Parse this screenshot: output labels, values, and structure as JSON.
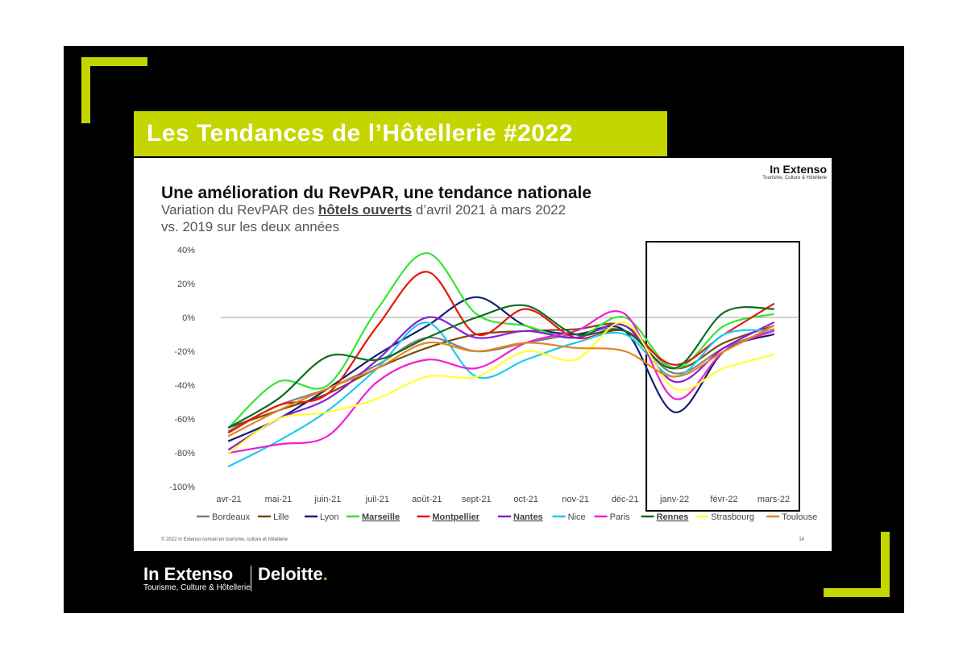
{
  "banner": {
    "title": "Les Tendances de l’Hôtellerie #2022"
  },
  "slide": {
    "logo": "In Extenso",
    "logo_sub": "Tourisme, Culture & Hôtellerie",
    "title": "Une amélioration du RevPAR, une tendance nationale",
    "subtitle_pre": "Variation du RevPAR des ",
    "subtitle_bold": "hôtels ouverts",
    "subtitle_post": " d’avril 2021 à mars 2022",
    "subtitle_line2": "vs. 2019 sur les deux années",
    "footer": "© 2022 In Extenso conseil en tourisme, culture et hôtellerie",
    "page": "14"
  },
  "brand": {
    "in_extenso": "In Extenso",
    "in_extenso_sub": "Tourisme, Culture & Hôtellerie",
    "deloitte": "Deloitte",
    "deloitte_dot": "."
  },
  "colors": {
    "accent": "#c5d500",
    "frame": "#000000",
    "deloitte_dot": "#86bc25"
  },
  "chart_data": {
    "type": "line",
    "categories": [
      "avr-21",
      "mai-21",
      "juin-21",
      "juil-21",
      "août-21",
      "sept-21",
      "oct-21",
      "nov-21",
      "déc-21",
      "janv-22",
      "févr-22",
      "mars-22"
    ],
    "ylim": [
      -100,
      40
    ],
    "yticks": [
      40,
      20,
      0,
      -20,
      -40,
      -60,
      -80,
      -100
    ],
    "ytick_labels": [
      "40%",
      "20%",
      "0%",
      "-20%",
      "-40%",
      "-60%",
      "-80%",
      "-100%"
    ],
    "highlight_range": [
      "janv-22",
      "mars-22"
    ],
    "legend_position": "bottom",
    "series": [
      {
        "name": "Bordeaux",
        "color": "#808080",
        "bold": false,
        "values": [
          -67,
          -52,
          -42,
          -28,
          -12,
          -20,
          -15,
          -10,
          -8,
          -33,
          -18,
          -7
        ]
      },
      {
        "name": "Lille",
        "color": "#7b4a12",
        "bold": false,
        "values": [
          -65,
          -55,
          -45,
          -30,
          -18,
          -10,
          -8,
          -7,
          -5,
          -30,
          -15,
          -5
        ]
      },
      {
        "name": "Lyon",
        "color": "#14206e",
        "bold": false,
        "values": [
          -73,
          -60,
          -42,
          -22,
          -5,
          12,
          -5,
          -10,
          -8,
          -56,
          -20,
          -10
        ]
      },
      {
        "name": "Marseille",
        "color": "#33e633",
        "bold": true,
        "values": [
          -65,
          -38,
          -40,
          5,
          38,
          2,
          -5,
          -12,
          0,
          -30,
          -5,
          2
        ]
      },
      {
        "name": "Montpellier",
        "color": "#e8160c",
        "bold": true,
        "values": [
          -68,
          -52,
          -45,
          -5,
          27,
          -10,
          5,
          -12,
          -8,
          -28,
          -10,
          8
        ]
      },
      {
        "name": "Nantes",
        "color": "#8a1fd6",
        "bold": true,
        "values": [
          -78,
          -60,
          -48,
          -25,
          0,
          -12,
          -8,
          -12,
          -5,
          -38,
          -18,
          -3
        ]
      },
      {
        "name": "Nice",
        "color": "#1ec9f0",
        "bold": false,
        "values": [
          -88,
          -73,
          -55,
          -30,
          -3,
          -35,
          -25,
          -15,
          -10,
          -35,
          -10,
          -8
        ]
      },
      {
        "name": "Paris",
        "color": "#f01ed6",
        "bold": false,
        "values": [
          -80,
          -75,
          -70,
          -38,
          -25,
          -30,
          -15,
          -8,
          2,
          -48,
          -20,
          -8
        ]
      },
      {
        "name": "Rennes",
        "color": "#0d6e1f",
        "bold": true,
        "values": [
          -65,
          -48,
          -23,
          -25,
          -12,
          0,
          7,
          -10,
          -8,
          -30,
          3,
          5
        ]
      },
      {
        "name": "Strasbourg",
        "color": "#ffff33",
        "bold": false,
        "values": [
          -80,
          -60,
          -56,
          -48,
          -35,
          -35,
          -20,
          -25,
          -3,
          -42,
          -30,
          -22
        ]
      },
      {
        "name": "Toulouse",
        "color": "#e3861a",
        "bold": false,
        "values": [
          -70,
          -55,
          -42,
          -30,
          -15,
          -20,
          -15,
          -18,
          -20,
          -35,
          -20,
          -5
        ]
      }
    ]
  }
}
